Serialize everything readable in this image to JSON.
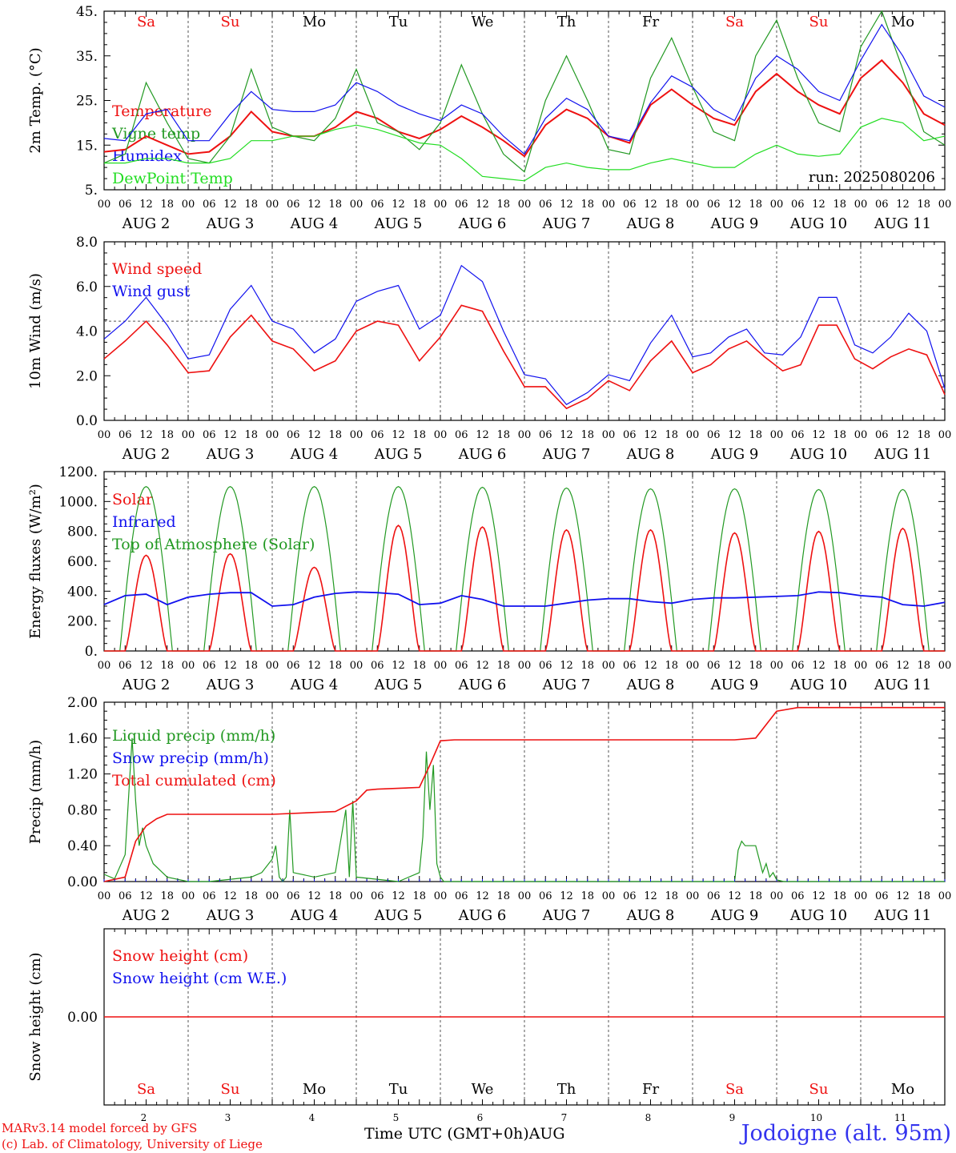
{
  "colors": {
    "red": "#ee1111",
    "green": "#229922",
    "blue": "#1111ee",
    "lightgreen": "#22dd22",
    "grid": "#555555"
  },
  "footer": {
    "credit_line1": "MARv3.14 model forced by GFS",
    "credit_line2": "(c) Lab. of Climatology, University of Liege",
    "xaxis_title": "Time UTC (GMT+0h)AUG",
    "station": "Jodoigne (alt. 95m)"
  },
  "chart_data": [
    {
      "type": "line",
      "id": "temperature",
      "ylabel": "2m Temp. (°C)",
      "ylim": [
        5,
        45
      ],
      "yticks": [
        "5.",
        "15.",
        "25.",
        "35.",
        "45."
      ],
      "run_label": "run: 2025080206",
      "legend": [
        {
          "name": "Temperature",
          "color": "#ee1111"
        },
        {
          "name": "Vigne temp",
          "color": "#229922"
        },
        {
          "name": "Humidex",
          "color": "#1111ee"
        },
        {
          "name": "DewPoint Temp",
          "color": "#22dd22"
        }
      ],
      "x_hours": [
        0,
        6,
        12,
        18,
        24,
        30,
        36,
        42,
        48,
        54,
        60,
        66,
        72,
        78,
        84,
        90,
        96,
        102,
        108,
        114,
        120,
        126,
        132,
        138,
        144,
        150,
        156,
        162,
        168,
        174,
        180,
        186,
        192,
        198,
        204,
        210,
        216,
        222,
        228,
        234,
        240
      ],
      "series": [
        {
          "name": "Temperature",
          "color": "#ee1111",
          "values": [
            13.5,
            14,
            17,
            15,
            13,
            13.5,
            17,
            22.5,
            18,
            17,
            17,
            19,
            22.5,
            21,
            18,
            16.5,
            18.5,
            21.5,
            19,
            16,
            12.5,
            19.5,
            23,
            21,
            17,
            15.5,
            24,
            27.5,
            24,
            21,
            19.5,
            27,
            31,
            27,
            24,
            22,
            30,
            34,
            29,
            22,
            19.5
          ]
        },
        {
          "name": "Vigne temp",
          "color": "#229922",
          "values": [
            11,
            13,
            29,
            20,
            12,
            11,
            17,
            32,
            19,
            17,
            16,
            21,
            32,
            20,
            18,
            14,
            20,
            33,
            22,
            13,
            9,
            25,
            35,
            25,
            14,
            13,
            30,
            39,
            28,
            18,
            16,
            35,
            43,
            30,
            20,
            18,
            37,
            45,
            32,
            18,
            15
          ]
        },
        {
          "name": "Humidex",
          "color": "#1111ee",
          "values": [
            16.5,
            16,
            22,
            23,
            16,
            16,
            22,
            27,
            23,
            22.5,
            22.5,
            24,
            29,
            27,
            24,
            22,
            20.5,
            24,
            22,
            17,
            13,
            21,
            25.5,
            23,
            17,
            16,
            24.5,
            30.5,
            28,
            23,
            20.5,
            30,
            35,
            32,
            27,
            25,
            34,
            42,
            35,
            26,
            23.5
          ]
        },
        {
          "name": "DewPoint Temp",
          "color": "#22dd22",
          "values": [
            11,
            11,
            12,
            12,
            11,
            11,
            12,
            16,
            16,
            17,
            17,
            18.5,
            19.5,
            18.5,
            17,
            15.5,
            15,
            12,
            8,
            7.5,
            7,
            10,
            11,
            10,
            9.5,
            9.5,
            11,
            12,
            11,
            10,
            10,
            13,
            15,
            13,
            12.5,
            13,
            19,
            21,
            20,
            16,
            17
          ]
        }
      ],
      "day_labels": [
        {
          "text": "Sa",
          "color": "#ee1111"
        },
        {
          "text": "Su",
          "color": "#ee1111"
        },
        {
          "text": "Mo",
          "color": "#000000"
        },
        {
          "text": "Tu",
          "color": "#000000"
        },
        {
          "text": "We",
          "color": "#000000"
        },
        {
          "text": "Th",
          "color": "#000000"
        },
        {
          "text": "Fr",
          "color": "#000000"
        },
        {
          "text": "Sa",
          "color": "#ee1111"
        },
        {
          "text": "Su",
          "color": "#ee1111"
        },
        {
          "text": "Mo",
          "color": "#000000"
        }
      ]
    },
    {
      "type": "line",
      "id": "wind",
      "ylabel": "10m Wind (m/s)",
      "ylim": [
        0,
        9
      ],
      "yticks": [
        "0.0",
        "2.0",
        "4.0",
        "6.0",
        "8.0"
      ],
      "reference_line": 5,
      "legend": [
        {
          "name": "Wind speed",
          "color": "#ee1111"
        },
        {
          "name": "Wind gust",
          "color": "#1111ee"
        }
      ],
      "x_hours": [
        0,
        6,
        12,
        18,
        24,
        30,
        36,
        42,
        48,
        54,
        60,
        66,
        72,
        78,
        84,
        90,
        96,
        102,
        108,
        114,
        120,
        126,
        132,
        138,
        144,
        150,
        156,
        162,
        168,
        174,
        180,
        186,
        192,
        198,
        204,
        210,
        216,
        222,
        228,
        234,
        240
      ],
      "series": [
        {
          "name": "Wind speed",
          "color": "#ee1111",
          "values": [
            3.1,
            4,
            5,
            3.8,
            2.4,
            2.5,
            4.2,
            5.3,
            4,
            3.6,
            2.5,
            3,
            4.5,
            5,
            4.8,
            3,
            4.2,
            5.8,
            5.5,
            3.5,
            1.7,
            1.7,
            0.6,
            1.1,
            2,
            1.5,
            3,
            4,
            3,
            1.5,
            1.2,
            1.2,
            1.5,
            2,
            1.5,
            1.6,
            3.5,
            4.2,
            2.5,
            2.3,
            2.3
          ]
        },
        {
          "name": "Wind gust",
          "color": "#1111ee",
          "values": [
            4.1,
            5,
            6.2,
            4.8,
            3.1,
            3.3,
            5.6,
            6.8,
            5,
            4.6,
            3.4,
            4.1,
            6,
            6.5,
            6.8,
            4.6,
            5.3,
            7.8,
            7,
            4.5,
            2.3,
            2.1,
            0.8,
            1.4,
            2.3,
            2,
            3.9,
            5.3,
            4.1,
            2,
            1.6,
            1.8,
            2.1,
            2.6,
            1.9,
            2,
            4.5,
            5.3,
            3,
            2.8,
            3
          ]
        },
        {
          "name": "Wind speed end",
          "color": "#ee1111",
          "values": [
            2.4,
            2.8,
            3.6,
            4,
            3.2,
            2.5,
            2.8,
            4.8,
            4.8,
            3.1,
            2.6,
            3.2,
            3.6,
            3.3,
            1.3
          ]
        },
        {
          "name": "Wind gust end",
          "color": "#1111ee",
          "values": [
            3.2,
            3.4,
            4.2,
            4.6,
            3.4,
            3.3,
            4.2,
            6.2,
            6.2,
            3.8,
            3.4,
            4.2,
            5.4,
            4.5,
            1.6
          ]
        }
      ]
    },
    {
      "type": "line",
      "id": "energy",
      "ylabel": "Energy fluxes (W/m²)",
      "ylim": [
        0,
        1200
      ],
      "yticks": [
        "0.",
        "200.",
        "400.",
        "600.",
        "800.",
        "1000.",
        "1200."
      ],
      "legend": [
        {
          "name": "Solar",
          "color": "#ee1111"
        },
        {
          "name": "Infrared",
          "color": "#1111ee"
        },
        {
          "name": "Top of Atmosphere (Solar)",
          "color": "#229922"
        }
      ],
      "toa_peaks": [
        1100,
        1100,
        1100,
        1100,
        1095,
        1090,
        1085,
        1085,
        1080,
        1080
      ],
      "solar_peaks": [
        640,
        650,
        560,
        840,
        830,
        810,
        810,
        790,
        800,
        820
      ],
      "infrared": [
        310,
        370,
        380,
        310,
        360,
        380,
        390,
        390,
        300,
        310,
        360,
        385,
        395,
        390,
        380,
        310,
        320,
        370,
        345,
        300,
        300,
        300,
        320,
        340,
        350,
        350,
        330,
        320,
        345,
        355,
        355,
        360,
        365,
        370,
        395,
        390,
        370,
        360,
        310,
        300,
        325
      ]
    },
    {
      "type": "line",
      "id": "precip",
      "ylabel": "Precip (mm/h)",
      "ylim": [
        0,
        2
      ],
      "yticks": [
        "0.00",
        "0.40",
        "0.80",
        "1.20",
        "1.60",
        "2.00"
      ],
      "legend": [
        {
          "name": "Liquid precip (mm/h)",
          "color": "#229922"
        },
        {
          "name": "Snow precip (mm/h)",
          "color": "#1111ee"
        },
        {
          "name": "Total cumulated (cm)",
          "color": "#ee1111"
        }
      ],
      "cumulated_x_hours": [
        0,
        6,
        9,
        12,
        15,
        18,
        24,
        48,
        66,
        72,
        75,
        78,
        90,
        93,
        96,
        100,
        144,
        168,
        180,
        186,
        192,
        198,
        240
      ],
      "cumulated_values": [
        0,
        0.05,
        0.45,
        0.62,
        0.7,
        0.75,
        0.75,
        0.75,
        0.78,
        0.9,
        1.02,
        1.03,
        1.05,
        1.3,
        1.57,
        1.58,
        1.58,
        1.58,
        1.58,
        1.6,
        1.9,
        1.94,
        1.94
      ],
      "liquid_x_hours": [
        0,
        3,
        6,
        8,
        9,
        10,
        11,
        12,
        14,
        18,
        24,
        30,
        42,
        45,
        48,
        49,
        50,
        51,
        52,
        53,
        54,
        60,
        66,
        69,
        70,
        71,
        72,
        84,
        90,
        91,
        92,
        93,
        94,
        95,
        96,
        97,
        168,
        180,
        181,
        182,
        183,
        186,
        188,
        189,
        190,
        191,
        192,
        194,
        240
      ],
      "liquid_values": [
        0.08,
        0.03,
        0.3,
        1.6,
        0.9,
        0.4,
        0.6,
        0.4,
        0.2,
        0.05,
        0,
        0,
        0.05,
        0.1,
        0.25,
        0.4,
        0.05,
        0,
        0.05,
        0.8,
        0.1,
        0.05,
        0.1,
        0.8,
        0.05,
        0.9,
        0.05,
        0,
        0.1,
        0.5,
        1.45,
        0.8,
        1.3,
        0.2,
        0.05,
        0,
        0,
        0,
        0.35,
        0.45,
        0.4,
        0.4,
        0.1,
        0.2,
        0.05,
        0.1,
        0.02,
        0,
        0
      ]
    },
    {
      "type": "line",
      "id": "snow",
      "ylabel": "Snow height (cm)",
      "ylim": [
        -1,
        1
      ],
      "yticks": [
        "0.00"
      ],
      "legend": [
        {
          "name": "Snow height (cm)",
          "color": "#ee1111"
        },
        {
          "name": "Snow height (cm W.E.)",
          "color": "#1111ee"
        }
      ],
      "values": [
        0,
        0
      ],
      "day_labels": [
        {
          "text": "Sa",
          "color": "#ee1111"
        },
        {
          "text": "Su",
          "color": "#ee1111"
        },
        {
          "text": "Mo",
          "color": "#000000"
        },
        {
          "text": "Tu",
          "color": "#000000"
        },
        {
          "text": "We",
          "color": "#000000"
        },
        {
          "text": "Th",
          "color": "#000000"
        },
        {
          "text": "Fr",
          "color": "#000000"
        },
        {
          "text": "Sa",
          "color": "#ee1111"
        },
        {
          "text": "Su",
          "color": "#ee1111"
        },
        {
          "text": "Mo",
          "color": "#000000"
        }
      ],
      "day_numbers": [
        "2",
        "3",
        "4",
        "5",
        "6",
        "7",
        "8",
        "9",
        "10",
        "11"
      ]
    }
  ],
  "x_axis": {
    "hour_ticks": [
      "00",
      "06",
      "12",
      "18"
    ],
    "final_tick": "00",
    "date_labels": [
      "AUG  2",
      "AUG  3",
      "AUG  4",
      "AUG  5",
      "AUG  6",
      "AUG  7",
      "AUG  8",
      "AUG  9",
      "AUG 10",
      "AUG 11"
    ]
  }
}
